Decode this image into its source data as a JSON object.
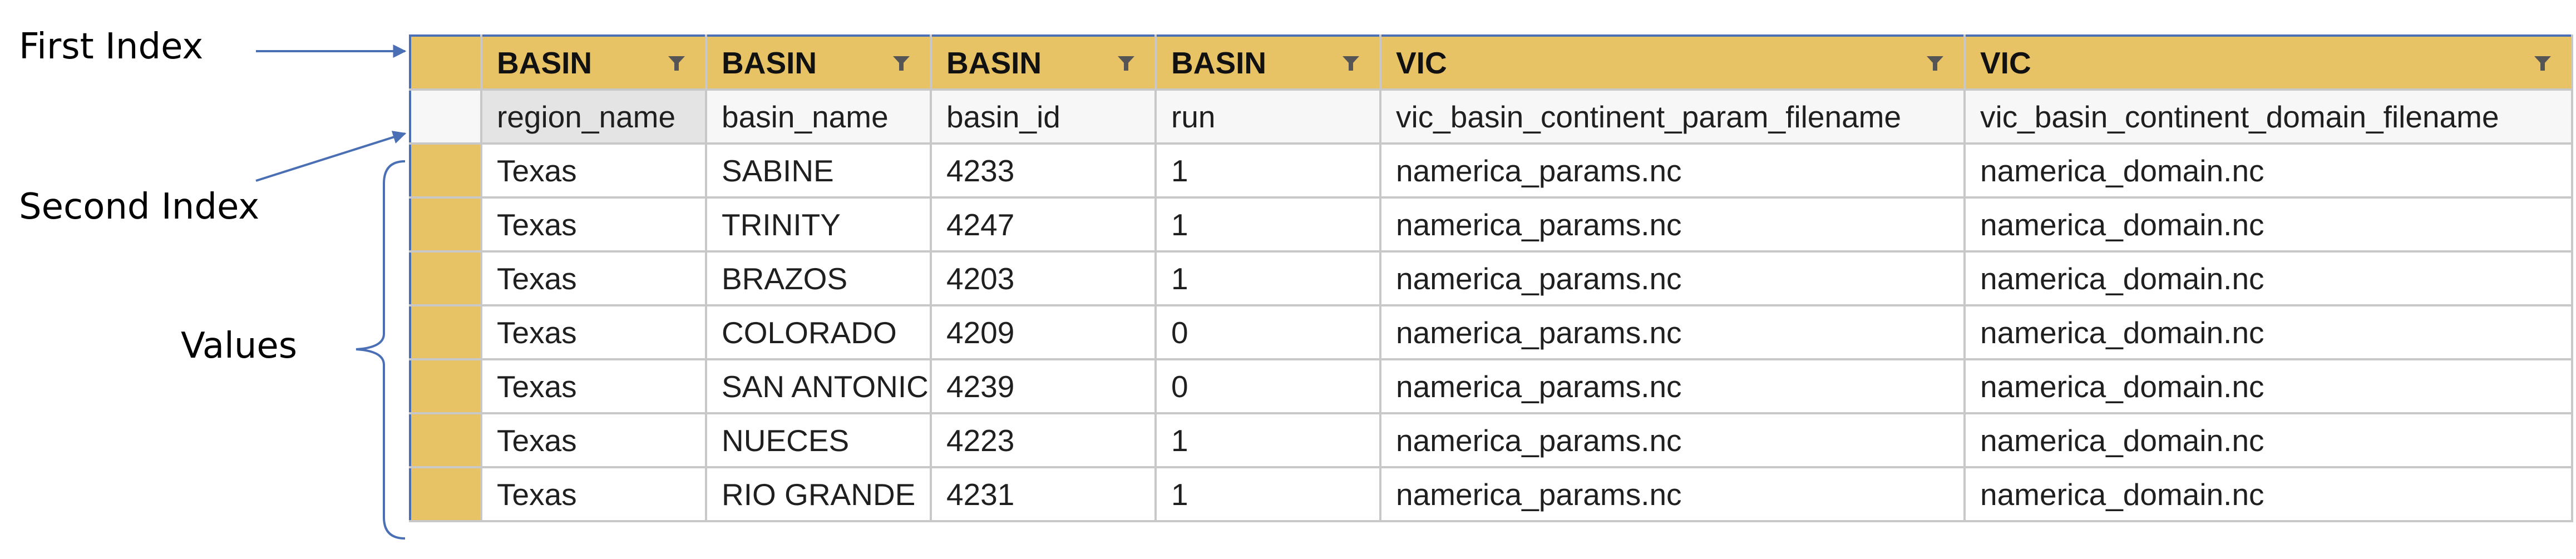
{
  "annotations": {
    "first_index": "First Index",
    "second_index": "Second Index",
    "values": "Values"
  },
  "colors": {
    "header_bg": "#e7c366",
    "arrow": "#4a6fb5",
    "grid": "#c8c8c8",
    "filter_icon": "#555555"
  },
  "icons": {
    "column_filter": "funnel-filter-icon"
  },
  "table": {
    "first_index": [
      "BASIN",
      "BASIN",
      "BASIN",
      "BASIN",
      "VIC",
      "VIC"
    ],
    "second_index": [
      "region_name",
      "basin_name",
      "basin_id",
      "run",
      "vic_basin_continent_param_filename",
      "vic_basin_continent_domain_filename"
    ],
    "rows": [
      [
        "Texas",
        "SABINE",
        "4233",
        "1",
        "namerica_params.nc",
        "namerica_domain.nc"
      ],
      [
        "Texas",
        "TRINITY",
        "4247",
        "1",
        "namerica_params.nc",
        "namerica_domain.nc"
      ],
      [
        "Texas",
        "BRAZOS",
        "4203",
        "1",
        "namerica_params.nc",
        "namerica_domain.nc"
      ],
      [
        "Texas",
        "COLORADO",
        "4209",
        "0",
        "namerica_params.nc",
        "namerica_domain.nc"
      ],
      [
        "Texas",
        "SAN ANTONIC",
        "4239",
        "0",
        "namerica_params.nc",
        "namerica_domain.nc"
      ],
      [
        "Texas",
        "NUECES",
        "4223",
        "1",
        "namerica_params.nc",
        "namerica_domain.nc"
      ],
      [
        "Texas",
        "RIO GRANDE",
        "4231",
        "1",
        "namerica_params.nc",
        "namerica_domain.nc"
      ]
    ]
  }
}
